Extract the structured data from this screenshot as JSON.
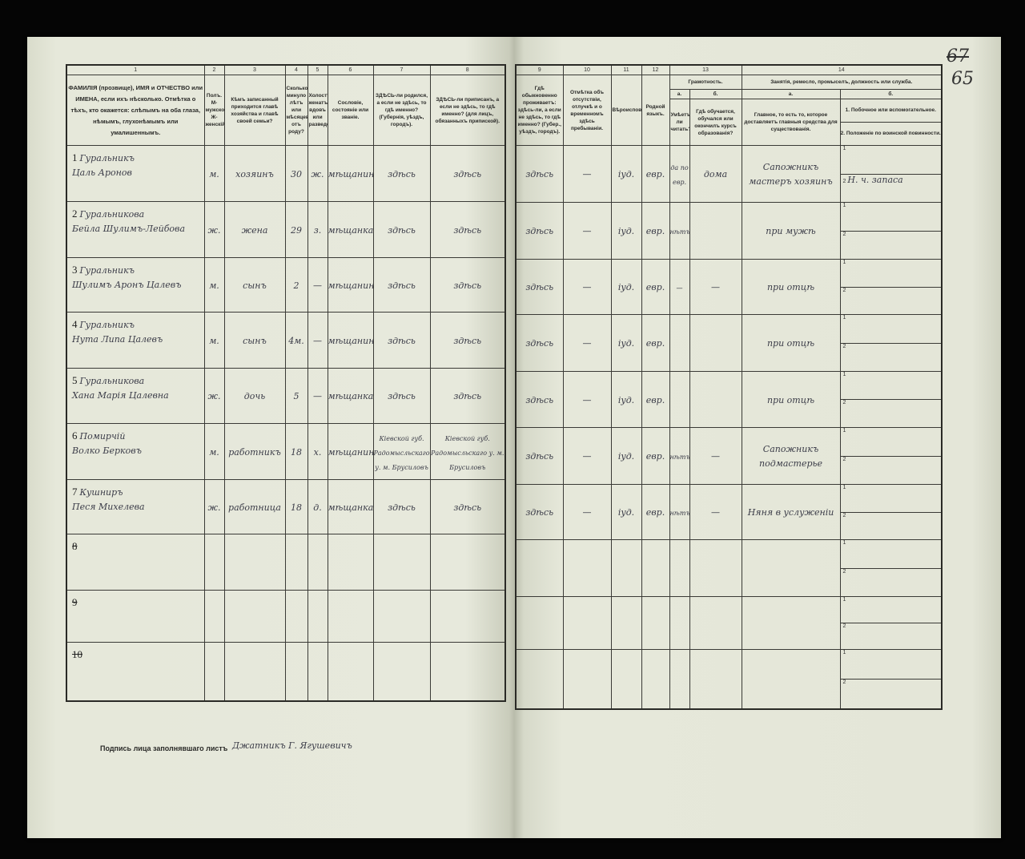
{
  "corner_marks": {
    "crossed": "67",
    "page": "65"
  },
  "left_columns": [
    {
      "num": "1",
      "label": "ФАМИЛІЯ (прозвище), ИМЯ и ОТЧЕСТВО или ИМЕНА, если ихъ нѣсколько. Отмѣтка о тѣхъ, кто окажется: слѣпымъ на оба глаза, нѣмымъ, глухонѣмымъ или умалишеннымъ."
    },
    {
      "num": "2",
      "label": "Полъ. М-мужской. Ж-женскій."
    },
    {
      "num": "3",
      "label": "Кѣмъ записанный приходится главѣ хозяйства и главѣ своей семьи?"
    },
    {
      "num": "4",
      "label": "Сколько минуло лѣтъ или мѣсяцевъ отъ роду?"
    },
    {
      "num": "5",
      "label": "Холостъ, женатъ, вдовъ или разведенъ."
    },
    {
      "num": "6",
      "label": "Сословіе, состояніе или званіе."
    },
    {
      "num": "7",
      "label": "ЗДѢСЬ-ли родился, а если не здѣсь, то гдѣ именно? (Губернія, уѣздъ, городъ)."
    },
    {
      "num": "8",
      "label": "ЗДѢСЬ-ли приписанъ, а если не здѣсь, то гдѣ именно? (для лицъ, обязанныхъ припиской)."
    }
  ],
  "right_columns": {
    "c9": {
      "num": "9",
      "label": "Гдѣ обыкновенно проживаетъ: здѣсь-ли, а если не здѣсь, то гдѣ именно? (Губер., уѣздъ, городъ)."
    },
    "c10": {
      "num": "10",
      "label": "Отмѣтка объ отсутствіи, отлучкѣ и о временномъ здѣсь пребываніи."
    },
    "c11": {
      "num": "11",
      "label": "Вѣроисповѣданіе."
    },
    "c12": {
      "num": "12",
      "label": "Родной языкъ."
    },
    "c13": {
      "num": "13",
      "title": "Грамотность.",
      "a_letter": "а.",
      "a_label": "Умѣетъ-ли читать?",
      "b_letter": "б.",
      "b_label": "Гдѣ обучается, обучался или окончилъ курсъ образованія?"
    },
    "c14": {
      "num": "14",
      "title": "Занятія, ремесло, промыселъ, должность или служба.",
      "a_letter": "а.",
      "a_label": "Главное, то есть то, которое доставляетъ главныя средства для существованія.",
      "b_letter": "б.",
      "b_label_1": "1. Побочное или вспомогательное.",
      "b_label_2": "2. Положеніе по воинской повинности."
    }
  },
  "rows": [
    {
      "n": "1",
      "surname": "Гуральникъ",
      "given": "Цаль Аронов",
      "sex": "м.",
      "relation": "хозяинъ",
      "age": "30",
      "marital": "ж.",
      "estate": "мѣщанинъ",
      "born": "здѣсь",
      "registered": "здѣсь",
      "residence": "здѣсь",
      "absence": "—",
      "religion": "іуд.",
      "language": "евр.",
      "literate": "да по евр.",
      "school": "дома",
      "occupation": "Сапожникъ мастеръ хозяинъ",
      "side": "",
      "military": "Н. ч. запаса"
    },
    {
      "n": "2",
      "surname": "Гуральникова",
      "given": "Бейла Шулимъ-Лейбова",
      "sex": "ж.",
      "relation": "жена",
      "age": "29",
      "marital": "з.",
      "estate": "мѣщанка",
      "born": "здѣсь",
      "registered": "здѣсь",
      "residence": "здѣсь",
      "absence": "—",
      "religion": "іуд.",
      "language": "евр.",
      "literate": "нѣтъ",
      "school": "",
      "occupation": "при мужѣ",
      "side": "",
      "military": ""
    },
    {
      "n": "3",
      "surname": "Гуральникъ",
      "given": "Шулимъ Аронъ Цалевъ",
      "sex": "м.",
      "relation": "сынъ",
      "age": "2",
      "marital": "—",
      "estate": "мѣщанинъ",
      "born": "здѣсь",
      "registered": "здѣсь",
      "residence": "здѣсь",
      "absence": "—",
      "religion": "іуд.",
      "language": "евр.",
      "literate": "—",
      "school": "—",
      "occupation": "при отцѣ",
      "side": "",
      "military": ""
    },
    {
      "n": "4",
      "surname": "Гуральникъ",
      "given": "Нута Липа Цалевъ",
      "sex": "м.",
      "relation": "сынъ",
      "age": "4м.",
      "marital": "—",
      "estate": "мѣщанинъ",
      "born": "здѣсь",
      "registered": "здѣсь",
      "residence": "здѣсь",
      "absence": "—",
      "religion": "іуд.",
      "language": "евр.",
      "literate": "",
      "school": "",
      "occupation": "при отцѣ",
      "side": "",
      "military": ""
    },
    {
      "n": "5",
      "surname": "Гуральникова",
      "given": "Хана Марія Цалевна",
      "sex": "ж.",
      "relation": "дочь",
      "age": "5",
      "marital": "—",
      "estate": "мѣщанка",
      "born": "здѣсь",
      "registered": "здѣсь",
      "residence": "здѣсь",
      "absence": "—",
      "religion": "іуд.",
      "language": "евр.",
      "literate": "",
      "school": "",
      "occupation": "при отцѣ",
      "side": "",
      "military": ""
    },
    {
      "n": "6",
      "surname": "Помирчій",
      "given": "Волко Берковъ",
      "sex": "м.",
      "relation": "работникъ",
      "age": "18",
      "marital": "х.",
      "estate": "мѣщанинъ",
      "born": "Кіевской губ. Радомысльскаго у. м. Брусиловъ",
      "registered": "Кіевской губ. Радомысльскаго у. м. Брусиловъ",
      "residence": "здѣсь",
      "absence": "—",
      "religion": "іуд.",
      "language": "евр.",
      "literate": "нѣтъ",
      "school": "—",
      "occupation": "Сапожникъ подмастерье",
      "side": "",
      "military": ""
    },
    {
      "n": "7",
      "surname": "Кушниръ",
      "given": "Песя Михелева",
      "sex": "ж.",
      "relation": "работница",
      "age": "18",
      "marital": "д.",
      "estate": "мѣщанка",
      "born": "здѣсь",
      "registered": "здѣсь",
      "residence": "здѣсь",
      "absence": "—",
      "religion": "іуд.",
      "language": "евр.",
      "literate": "нѣтъ",
      "school": "—",
      "occupation": "Няня в услуженіи",
      "side": "",
      "military": ""
    },
    {
      "n": "8"
    },
    {
      "n": "9"
    },
    {
      "n": "10"
    }
  ],
  "sub_labels": [
    "1",
    "2"
  ],
  "footer": {
    "signature_label": "Подпись лица заполнявшаго листъ",
    "signature": "Джатникъ Г. Ягушевичъ"
  }
}
